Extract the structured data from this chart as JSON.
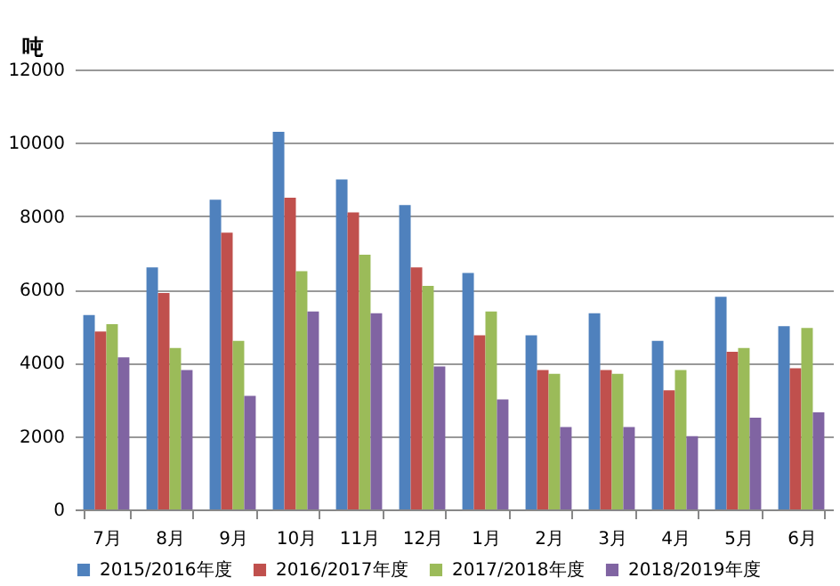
{
  "chart_data": {
    "type": "bar",
    "ylabel": "吨",
    "categories": [
      "7月",
      "8月",
      "9月",
      "10月",
      "11月",
      "12月",
      "1月",
      "2月",
      "3月",
      "4月",
      "5月",
      "6月"
    ],
    "series": [
      {
        "name": "2015/2016年度",
        "color": "#4f81bd",
        "values": [
          5300,
          6600,
          8450,
          10300,
          9000,
          8300,
          6450,
          4750,
          5350,
          4600,
          5800,
          5000
        ]
      },
      {
        "name": "2016/2017年度",
        "color": "#c0504d",
        "values": [
          4850,
          5900,
          7550,
          8500,
          8100,
          6600,
          4750,
          3800,
          3800,
          3250,
          4300,
          3850
        ]
      },
      {
        "name": "2017/2018年度",
        "color": "#9bbb59",
        "values": [
          5050,
          4400,
          4600,
          6500,
          6950,
          6100,
          5400,
          3700,
          3700,
          3800,
          4400,
          4950
        ]
      },
      {
        "name": "2018/2019年度",
        "color": "#8064a2",
        "values": [
          4150,
          3800,
          3100,
          5400,
          5350,
          3900,
          3000,
          2250,
          2250,
          2000,
          2500,
          2650
        ]
      }
    ],
    "ylim": [
      0,
      12000
    ],
    "yticks": [
      0,
      2000,
      4000,
      6000,
      8000,
      10000,
      12000
    ],
    "grid": "y",
    "legend": "bottom"
  }
}
